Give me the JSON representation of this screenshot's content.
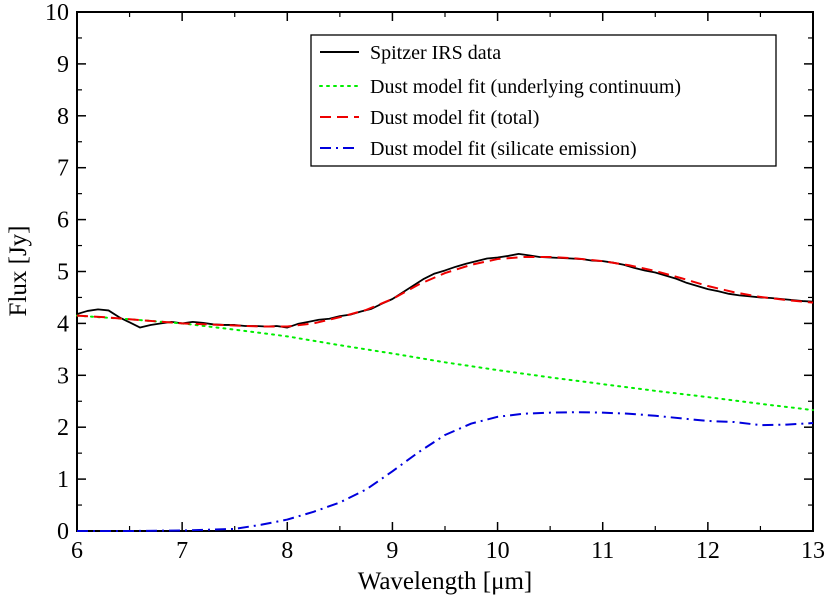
{
  "chart_data": {
    "type": "line",
    "xlabel": "Wavelength [μm]",
    "ylabel": "Flux [Jy]",
    "xlim": [
      6,
      13
    ],
    "ylim": [
      0,
      10
    ],
    "x_ticks": [
      6,
      7,
      8,
      9,
      10,
      11,
      12,
      13
    ],
    "y_ticks": [
      0,
      1,
      2,
      3,
      4,
      5,
      6,
      7,
      8,
      9,
      10
    ],
    "grid": false,
    "legend_position": "top-right",
    "series": [
      {
        "name": "Spitzer IRS data",
        "style": "solid",
        "color": "#000000",
        "x": [
          6.0,
          6.1,
          6.2,
          6.3,
          6.4,
          6.5,
          6.6,
          6.7,
          6.8,
          6.9,
          7.0,
          7.1,
          7.2,
          7.3,
          7.4,
          7.5,
          7.6,
          7.7,
          7.8,
          7.9,
          8.0,
          8.1,
          8.2,
          8.3,
          8.4,
          8.5,
          8.6,
          8.7,
          8.8,
          8.9,
          9.0,
          9.1,
          9.2,
          9.3,
          9.4,
          9.5,
          9.6,
          9.7,
          9.8,
          9.9,
          10.0,
          10.1,
          10.2,
          10.3,
          10.4,
          10.5,
          10.6,
          10.7,
          10.8,
          10.9,
          11.0,
          11.1,
          11.2,
          11.3,
          11.4,
          11.5,
          11.6,
          11.7,
          11.8,
          11.9,
          12.0,
          12.1,
          12.2,
          12.3,
          12.4,
          12.5,
          12.6,
          12.7,
          12.8,
          12.9,
          13.0
        ],
        "y": [
          4.18,
          4.24,
          4.27,
          4.25,
          4.12,
          4.02,
          3.92,
          3.97,
          4.0,
          4.03,
          4.0,
          4.03,
          4.01,
          3.98,
          3.97,
          3.97,
          3.95,
          3.95,
          3.94,
          3.95,
          3.92,
          3.99,
          4.03,
          4.07,
          4.09,
          4.14,
          4.17,
          4.23,
          4.28,
          4.38,
          4.47,
          4.6,
          4.73,
          4.86,
          4.96,
          5.02,
          5.09,
          5.15,
          5.2,
          5.25,
          5.27,
          5.3,
          5.34,
          5.31,
          5.28,
          5.27,
          5.26,
          5.25,
          5.24,
          5.21,
          5.2,
          5.17,
          5.13,
          5.07,
          5.02,
          4.98,
          4.92,
          4.86,
          4.78,
          4.72,
          4.66,
          4.62,
          4.57,
          4.54,
          4.52,
          4.5,
          4.49,
          4.47,
          4.45,
          4.43,
          4.42
        ]
      },
      {
        "name": "Dust model fit (underlying continuum)",
        "style": "dotted",
        "color": "#00ee00",
        "x": [
          6.0,
          6.5,
          7.0,
          7.5,
          8.0,
          8.5,
          9.0,
          9.5,
          10.0,
          10.5,
          11.0,
          11.5,
          12.0,
          12.5,
          13.0
        ],
        "y": [
          4.15,
          4.08,
          4.0,
          3.88,
          3.75,
          3.58,
          3.42,
          3.25,
          3.1,
          2.96,
          2.83,
          2.7,
          2.58,
          2.45,
          2.33
        ]
      },
      {
        "name": "Dust model fit (total)",
        "style": "dashed",
        "color": "#ee0000",
        "x": [
          6.0,
          6.25,
          6.5,
          6.75,
          7.0,
          7.25,
          7.5,
          7.75,
          8.0,
          8.25,
          8.5,
          8.75,
          9.0,
          9.25,
          9.5,
          9.75,
          10.0,
          10.25,
          10.5,
          10.75,
          11.0,
          11.25,
          11.5,
          11.75,
          12.0,
          12.25,
          12.5,
          12.75,
          13.0
        ],
        "y": [
          4.15,
          4.12,
          4.08,
          4.04,
          4.0,
          3.98,
          3.96,
          3.94,
          3.94,
          4.0,
          4.12,
          4.26,
          4.47,
          4.75,
          4.97,
          5.13,
          5.24,
          5.28,
          5.28,
          5.25,
          5.2,
          5.12,
          5.01,
          4.87,
          4.72,
          4.6,
          4.51,
          4.45,
          4.4
        ]
      },
      {
        "name": "Dust model fit (silicate emission)",
        "style": "dashdot",
        "color": "#0000dd",
        "x": [
          6.0,
          6.5,
          7.0,
          7.5,
          7.75,
          8.0,
          8.25,
          8.5,
          8.75,
          9.0,
          9.25,
          9.5,
          9.75,
          10.0,
          10.25,
          10.5,
          10.75,
          11.0,
          11.25,
          11.5,
          11.75,
          12.0,
          12.25,
          12.5,
          12.75,
          13.0
        ],
        "y": [
          0.0,
          0.0,
          0.01,
          0.04,
          0.12,
          0.22,
          0.37,
          0.55,
          0.8,
          1.15,
          1.52,
          1.85,
          2.07,
          2.2,
          2.26,
          2.28,
          2.29,
          2.28,
          2.26,
          2.22,
          2.17,
          2.12,
          2.1,
          2.04,
          2.05,
          2.08
        ]
      }
    ]
  }
}
